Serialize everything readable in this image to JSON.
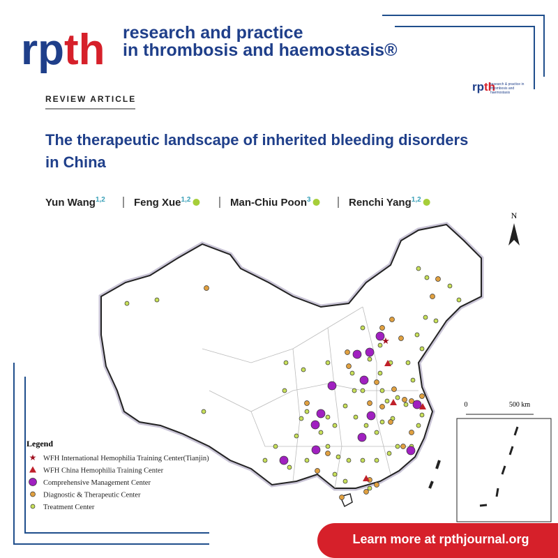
{
  "header": {
    "logo": [
      "rp",
      "th"
    ],
    "journal_lines": [
      "research and practice",
      "in thrombosis and haemostasis®"
    ]
  },
  "article_type": "REVIEW ARTICLE",
  "small_logo": {
    "logo": [
      "rp",
      "th"
    ],
    "caption": "research & practice in thrombosis and haemostasis"
  },
  "title_lines": [
    "The therapeutic landscape of inherited bleeding disorders",
    "in China"
  ],
  "authors": [
    {
      "name": "Yun Wang",
      "sup": "1,2"
    },
    {
      "name": "Feng Xue",
      "sup": "1,2"
    },
    {
      "name": "Man-Chiu Poon",
      "sup": "3"
    },
    {
      "name": "Renchi Yang",
      "sup": "1,2"
    }
  ],
  "map": {
    "north": "N",
    "scale": [
      "0",
      "500 km"
    ],
    "legend": {
      "title": "Legend",
      "items": [
        "WFH International Hemophilia Training Center(Tianjin)",
        "WFH China Hemophilia Training Center",
        "Comprehensive Management Center",
        "Diagnostic & Therapeutic Center",
        "Treatment Center"
      ]
    }
  },
  "cta": "Learn more at rpthjournal.org"
}
